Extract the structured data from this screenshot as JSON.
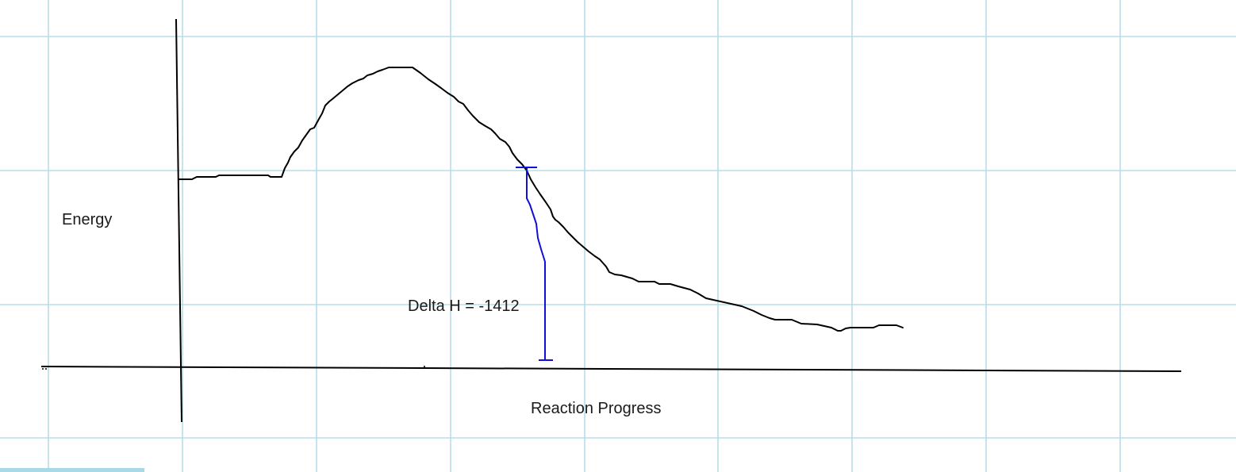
{
  "diagram": {
    "type": "energy-profile-sketch",
    "y_axis_label": "Energy",
    "x_axis_label": "Reaction Progress",
    "annotation": "Delta H = -1412",
    "colors": {
      "grid": "#b7dde9",
      "curve": "#000000",
      "delta_marker": "#1010d8",
      "scroll_stub": "#a9d8e6"
    }
  }
}
